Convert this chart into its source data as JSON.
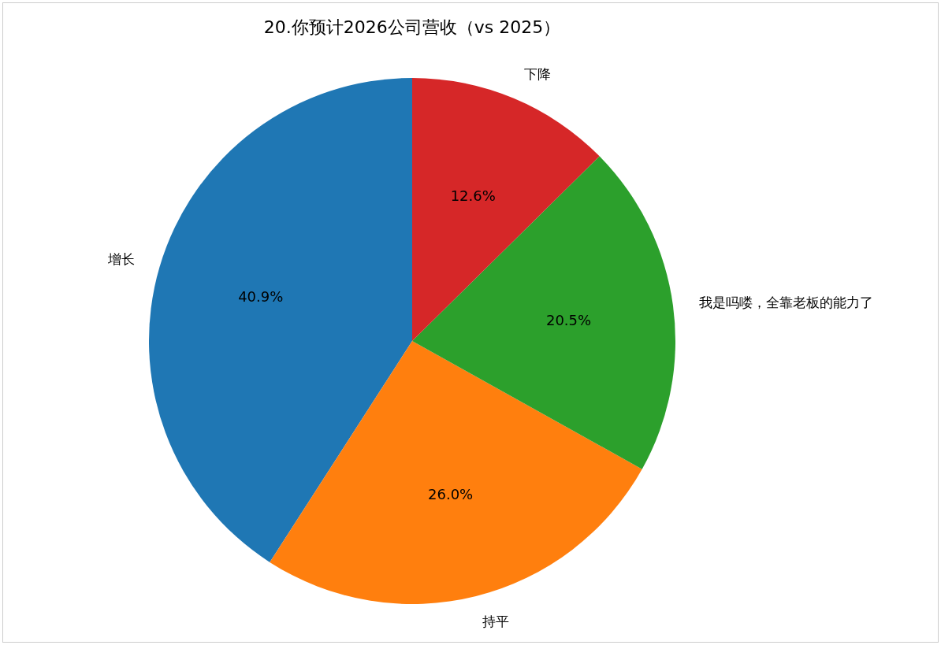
{
  "chart_data": {
    "type": "pie",
    "title": "20.你预计2026公司营收（vs 2025）",
    "categories": [
      "增长",
      "持平",
      "我是吗喽，全靠老板的能力了",
      "下降"
    ],
    "values": [
      40.9,
      26.0,
      20.5,
      12.6
    ],
    "colors": [
      "#1f77b4",
      "#ff7f0e",
      "#2ca02c",
      "#d62728"
    ],
    "value_labels": [
      "40.9%",
      "26.0%",
      "20.5%",
      "12.6%"
    ]
  }
}
